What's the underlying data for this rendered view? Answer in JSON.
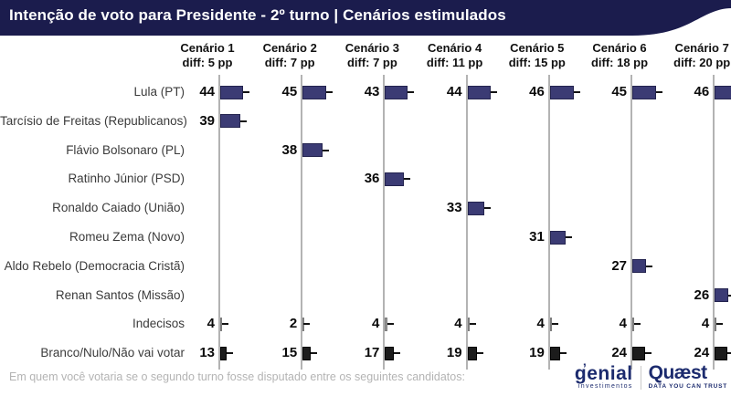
{
  "header": {
    "title": "Intenção de voto para Presidente - 2º turno | Cenários estimulados"
  },
  "footer": {
    "question": "Em quem você votaria se o segundo turno fosse disputado entre os seguintes candidatos:",
    "logo_genial": "genial",
    "logo_genial_sub": "investimentos",
    "logo_quaest": "Quæst",
    "logo_quaest_sub": "DATA YOU CAN TRUST"
  },
  "colors": {
    "header_bg": "#1b1c4d",
    "candidate_bar": "#3b3b74",
    "candidate_bar_border": "#24244f",
    "undecided_bar": "#9b9b9b",
    "undecided_bar_border": "#7e7e7e",
    "blank_bar": "#1c1c1c",
    "blank_bar_border": "#000000",
    "axis": "#b3b3b3"
  },
  "chart_data": {
    "type": "bar",
    "orientation": "horizontal",
    "title": "Intenção de voto para Presidente - 2º turno | Cenários estimulados",
    "value_unit": "percent",
    "xlim": [
      0,
      46
    ],
    "grid": false,
    "scenarios": [
      {
        "label": "Cenário 1",
        "diff": "diff: 5 pp"
      },
      {
        "label": "Cenário 2",
        "diff": "diff: 7 pp"
      },
      {
        "label": "Cenário 3",
        "diff": "diff: 7 pp"
      },
      {
        "label": "Cenário 4",
        "diff": "diff: 11 pp"
      },
      {
        "label": "Cenário 5",
        "diff": "diff: 15 pp"
      },
      {
        "label": "Cenário 6",
        "diff": "diff: 18 pp"
      },
      {
        "label": "Cenário 7",
        "diff": "diff: 20 pp"
      }
    ],
    "rows": [
      {
        "label": "Lula (PT)",
        "kind": "candidate",
        "values": [
          44,
          45,
          43,
          44,
          46,
          45,
          46
        ]
      },
      {
        "label": "Tarcísio de Freitas (Republicanos)",
        "kind": "candidate",
        "values": [
          39,
          null,
          null,
          null,
          null,
          null,
          null
        ]
      },
      {
        "label": "Flávio Bolsonaro (PL)",
        "kind": "candidate",
        "values": [
          null,
          38,
          null,
          null,
          null,
          null,
          null
        ]
      },
      {
        "label": "Ratinho Júnior (PSD)",
        "kind": "candidate",
        "values": [
          null,
          null,
          36,
          null,
          null,
          null,
          null
        ]
      },
      {
        "label": "Ronaldo Caiado (União)",
        "kind": "candidate",
        "values": [
          null,
          null,
          null,
          33,
          null,
          null,
          null
        ]
      },
      {
        "label": "Romeu Zema (Novo)",
        "kind": "candidate",
        "values": [
          null,
          null,
          null,
          null,
          31,
          null,
          null
        ]
      },
      {
        "label": "Aldo Rebelo (Democracia Cristã)",
        "kind": "candidate",
        "values": [
          null,
          null,
          null,
          null,
          null,
          27,
          null
        ]
      },
      {
        "label": "Renan Santos (Missão)",
        "kind": "candidate",
        "values": [
          null,
          null,
          null,
          null,
          null,
          null,
          26
        ]
      },
      {
        "label": "Indecisos",
        "kind": "undecided",
        "values": [
          4,
          2,
          4,
          4,
          4,
          4,
          4
        ]
      },
      {
        "label": "Branco/Nulo/Não vai votar",
        "kind": "blank",
        "values": [
          13,
          15,
          17,
          19,
          19,
          24,
          24
        ]
      }
    ]
  }
}
